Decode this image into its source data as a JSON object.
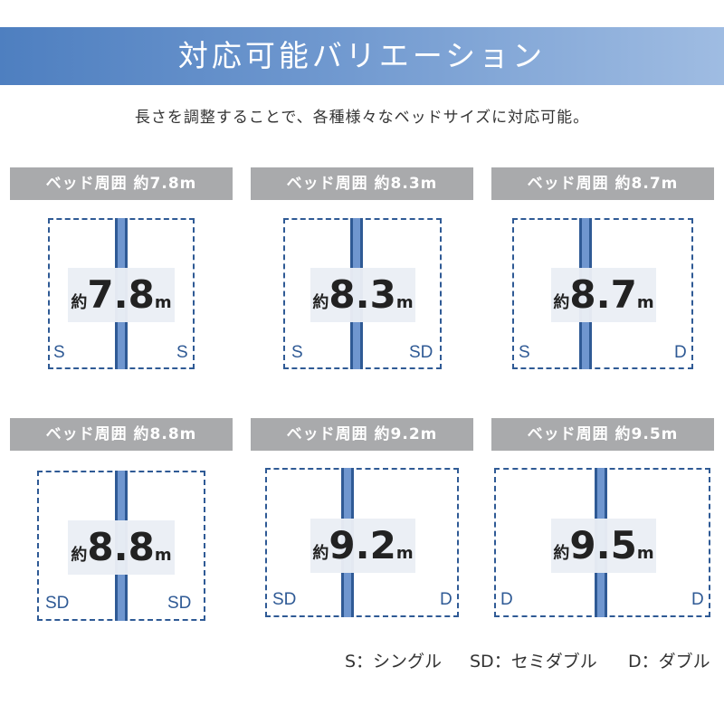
{
  "header": {
    "title": "対応可能バリエーション"
  },
  "subtitle": "長さを調整することで、各種様々なベッドサイズに対応可能。",
  "cards": [
    {
      "header": "ベッド周囲 約7.8m",
      "prefix": "約",
      "value": "7.8",
      "unit": "m",
      "left_size": "S",
      "right_size": "S"
    },
    {
      "header": "ベッド周囲 約8.3m",
      "prefix": "約",
      "value": "8.3",
      "unit": "m",
      "left_size": "S",
      "right_size": "SD"
    },
    {
      "header": "ベッド周囲 約8.7m",
      "prefix": "約",
      "value": "8.7",
      "unit": "m",
      "left_size": "S",
      "right_size": "D"
    },
    {
      "header": "ベッド周囲 約8.8m",
      "prefix": "約",
      "value": "8.8",
      "unit": "m",
      "left_size": "SD",
      "right_size": "SD"
    },
    {
      "header": "ベッド周囲 約9.2m",
      "prefix": "約",
      "value": "9.2",
      "unit": "m",
      "left_size": "SD",
      "right_size": "D"
    },
    {
      "header": "ベッド周囲 約9.5m",
      "prefix": "約",
      "value": "9.5",
      "unit": "m",
      "left_size": "D",
      "right_size": "D"
    }
  ],
  "legend": [
    {
      "text": "S：シングル"
    },
    {
      "text": "SD：セミダブル"
    },
    {
      "text": "D：ダブル"
    }
  ],
  "colors": {
    "banner": "#6f98cf",
    "outline": "#2f5a95",
    "header_bg": "#a9aaac"
  }
}
